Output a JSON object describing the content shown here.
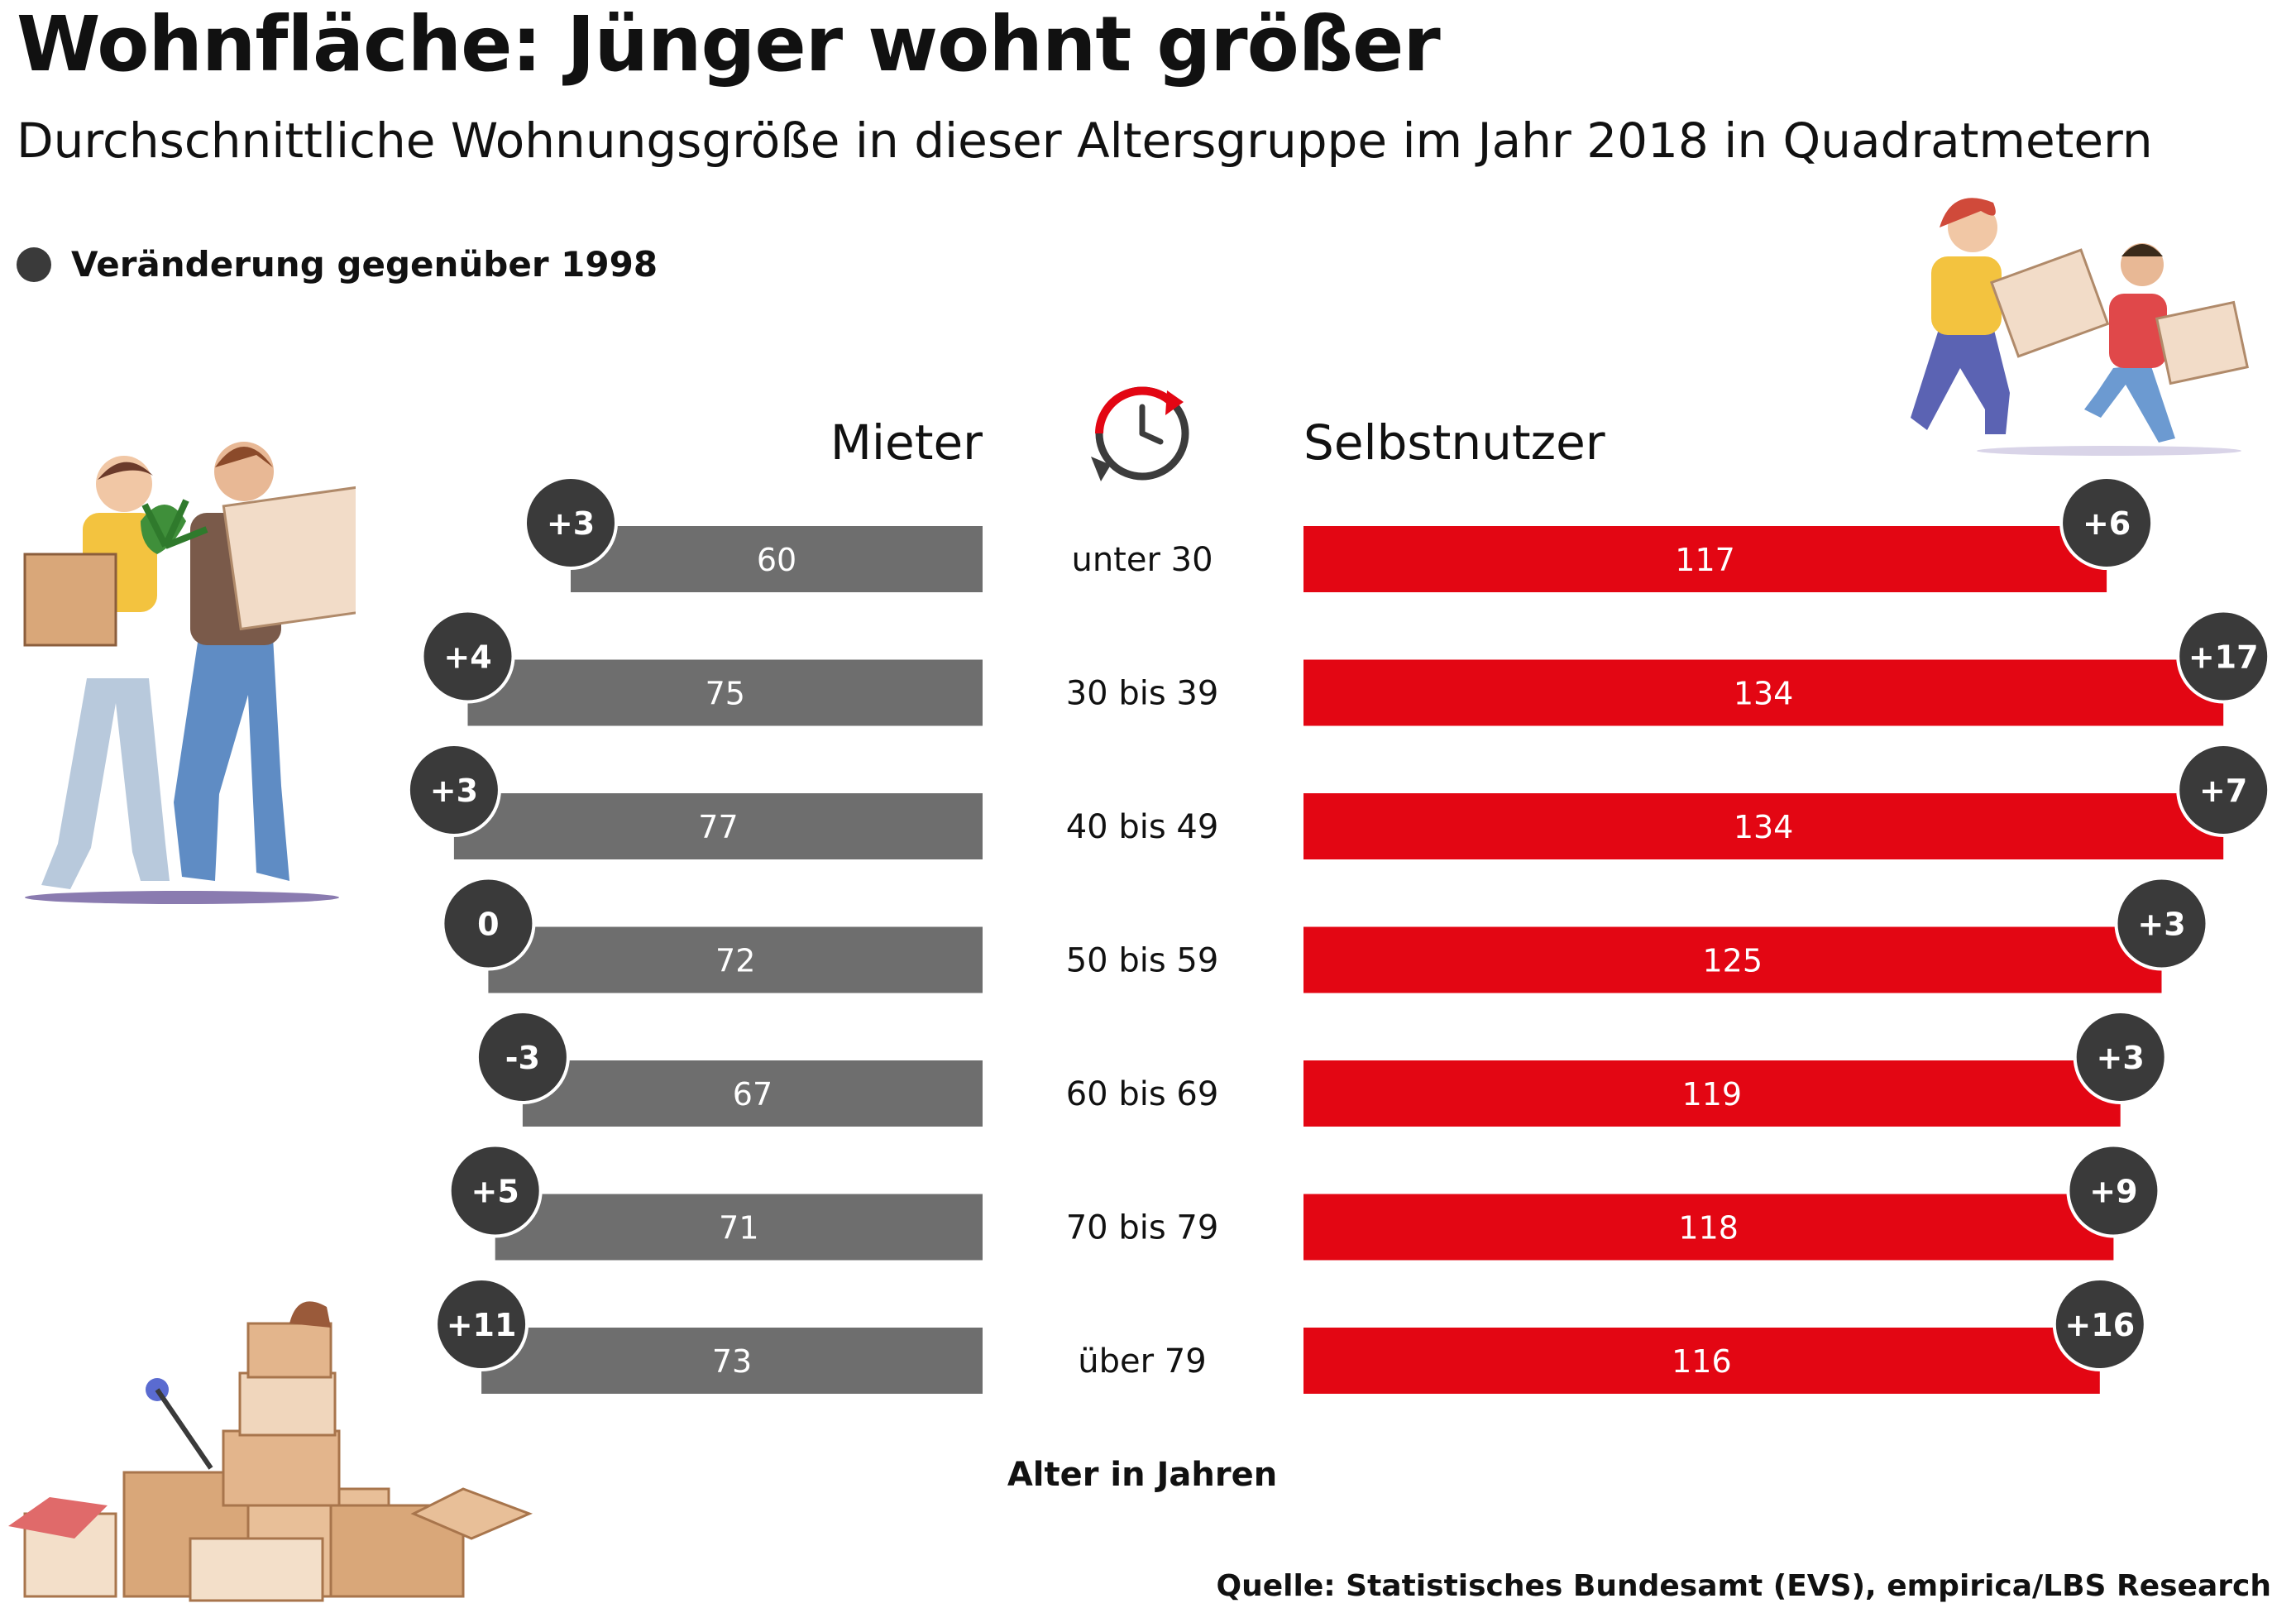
{
  "title": "Wohnfläche: Jünger wohnt größer",
  "subtitle": "Durchschnittliche Wohnungsgröße in dieser Altersgruppe im Jahr 2018 in Quadratmetern",
  "legend": {
    "label": "Veränderung gegenüber 1998",
    "marker_color": "#3a3a3a"
  },
  "source": "Quelle: Statistisches Bundesamt (EVS), empirica/LBS Research",
  "icons": {
    "center": "clock-refresh-icon"
  },
  "chart_data": {
    "type": "bar",
    "orientation": "horizontal-butterfly",
    "categories": [
      "unter 30",
      "30 bis 39",
      "40 bis 49",
      "50 bis 59",
      "60 bis 69",
      "70 bis 79",
      "über 79"
    ],
    "category_axis_label": "Alter in Jahren",
    "series": [
      {
        "name": "Mieter",
        "color": "#6e6e6e",
        "values": [
          60,
          75,
          77,
          72,
          67,
          71,
          73
        ],
        "change_labels": [
          "+3",
          "+4",
          "+3",
          "0",
          "-3",
          "+5",
          "+11"
        ]
      },
      {
        "name": "Selbstnutzer",
        "color": "#e30613",
        "values": [
          117,
          134,
          134,
          125,
          119,
          118,
          116
        ],
        "change_labels": [
          "+6",
          "+17",
          "+7",
          "+3",
          "+3",
          "+9",
          "+16"
        ]
      }
    ],
    "change_marker_color": "#3a3a3a"
  }
}
